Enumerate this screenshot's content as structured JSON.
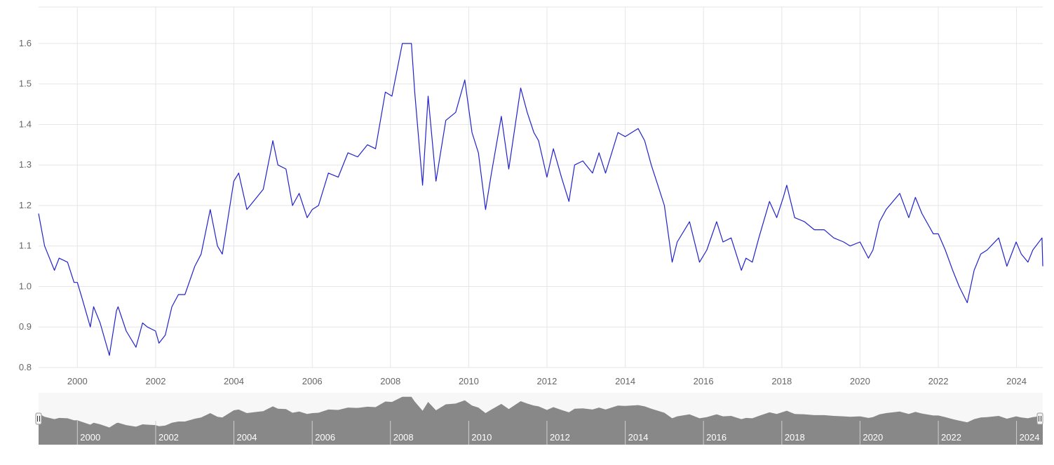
{
  "chart_data": {
    "type": "line",
    "title": "",
    "xlabel": "",
    "ylabel": "",
    "x_range": [
      "1999-01-04",
      "2024-09-02"
    ],
    "ylim": [
      0.8,
      1.69
    ],
    "y_ticks": [
      "0.8",
      "0.9",
      "1.0",
      "1.1",
      "1.2",
      "1.3",
      "1.4",
      "1.5",
      "1.6"
    ],
    "x_ticks": [
      "2000",
      "2002",
      "2004",
      "2006",
      "2008",
      "2010",
      "2012",
      "2014",
      "2016",
      "2018",
      "2020",
      "2022",
      "2024"
    ],
    "grid": true,
    "legend": "none",
    "navigator": {
      "ticks": [
        "2000",
        "2002",
        "2004",
        "2006",
        "2008",
        "2010",
        "2012",
        "2014",
        "2016",
        "2018",
        "2020",
        "2022",
        "2024"
      ],
      "fill_color": "#888888",
      "background": "#f7f7f7"
    },
    "series": [
      {
        "color": "#2222cc",
        "points": [
          [
            "1999-01-04",
            1.18
          ],
          [
            "1999-03-01",
            1.1
          ],
          [
            "1999-06-01",
            1.04
          ],
          [
            "1999-07-15",
            1.07
          ],
          [
            "1999-10-01",
            1.06
          ],
          [
            "1999-12-01",
            1.01
          ],
          [
            "2000-01-01",
            1.01
          ],
          [
            "2000-02-15",
            0.97
          ],
          [
            "2000-05-01",
            0.9
          ],
          [
            "2000-06-01",
            0.95
          ],
          [
            "2000-08-01",
            0.91
          ],
          [
            "2000-10-26",
            0.83
          ],
          [
            "2000-12-31",
            0.94
          ],
          [
            "2001-01-15",
            0.95
          ],
          [
            "2001-04-01",
            0.89
          ],
          [
            "2001-07-01",
            0.85
          ],
          [
            "2001-09-01",
            0.91
          ],
          [
            "2001-10-15",
            0.9
          ],
          [
            "2001-12-31",
            0.89
          ],
          [
            "2002-02-01",
            0.86
          ],
          [
            "2002-04-01",
            0.88
          ],
          [
            "2002-06-01",
            0.95
          ],
          [
            "2002-08-01",
            0.98
          ],
          [
            "2002-10-01",
            0.98
          ],
          [
            "2003-01-01",
            1.05
          ],
          [
            "2003-03-01",
            1.08
          ],
          [
            "2003-05-25",
            1.19
          ],
          [
            "2003-08-01",
            1.1
          ],
          [
            "2003-09-15",
            1.08
          ],
          [
            "2003-12-31",
            1.26
          ],
          [
            "2004-02-15",
            1.28
          ],
          [
            "2004-05-01",
            1.19
          ],
          [
            "2004-08-01",
            1.22
          ],
          [
            "2004-10-01",
            1.24
          ],
          [
            "2004-12-30",
            1.36
          ],
          [
            "2005-02-15",
            1.3
          ],
          [
            "2005-05-01",
            1.29
          ],
          [
            "2005-07-01",
            1.2
          ],
          [
            "2005-09-01",
            1.23
          ],
          [
            "2005-11-15",
            1.17
          ],
          [
            "2006-01-01",
            1.19
          ],
          [
            "2006-03-01",
            1.2
          ],
          [
            "2006-06-01",
            1.28
          ],
          [
            "2006-09-01",
            1.27
          ],
          [
            "2006-12-01",
            1.33
          ],
          [
            "2007-03-01",
            1.32
          ],
          [
            "2007-06-01",
            1.35
          ],
          [
            "2007-08-15",
            1.34
          ],
          [
            "2007-11-15",
            1.48
          ],
          [
            "2008-01-15",
            1.47
          ],
          [
            "2008-04-21",
            1.6
          ],
          [
            "2008-07-15",
            1.6
          ],
          [
            "2008-08-15",
            1.48
          ],
          [
            "2008-10-27",
            1.25
          ],
          [
            "2008-12-18",
            1.47
          ],
          [
            "2009-03-01",
            1.26
          ],
          [
            "2009-06-01",
            1.41
          ],
          [
            "2009-09-01",
            1.43
          ],
          [
            "2009-11-25",
            1.51
          ],
          [
            "2010-02-01",
            1.38
          ],
          [
            "2010-04-01",
            1.33
          ],
          [
            "2010-06-07",
            1.19
          ],
          [
            "2010-08-01",
            1.28
          ],
          [
            "2010-11-01",
            1.42
          ],
          [
            "2011-01-10",
            1.29
          ],
          [
            "2011-05-01",
            1.49
          ],
          [
            "2011-07-01",
            1.43
          ],
          [
            "2011-09-01",
            1.38
          ],
          [
            "2011-10-15",
            1.36
          ],
          [
            "2012-01-01",
            1.27
          ],
          [
            "2012-03-01",
            1.34
          ],
          [
            "2012-05-15",
            1.27
          ],
          [
            "2012-07-24",
            1.21
          ],
          [
            "2012-09-15",
            1.3
          ],
          [
            "2012-12-01",
            1.31
          ],
          [
            "2013-03-01",
            1.28
          ],
          [
            "2013-05-01",
            1.33
          ],
          [
            "2013-07-01",
            1.28
          ],
          [
            "2013-10-25",
            1.38
          ],
          [
            "2014-01-01",
            1.37
          ],
          [
            "2014-05-01",
            1.39
          ],
          [
            "2014-07-01",
            1.36
          ],
          [
            "2014-09-01",
            1.3
          ],
          [
            "2014-11-01",
            1.25
          ],
          [
            "2015-01-01",
            1.2
          ],
          [
            "2015-03-15",
            1.06
          ],
          [
            "2015-05-01",
            1.11
          ],
          [
            "2015-08-24",
            1.16
          ],
          [
            "2015-11-25",
            1.06
          ],
          [
            "2016-02-01",
            1.09
          ],
          [
            "2016-05-03",
            1.16
          ],
          [
            "2016-07-01",
            1.11
          ],
          [
            "2016-09-15",
            1.12
          ],
          [
            "2016-12-20",
            1.04
          ],
          [
            "2017-02-01",
            1.07
          ],
          [
            "2017-04-01",
            1.06
          ],
          [
            "2017-06-01",
            1.12
          ],
          [
            "2017-09-08",
            1.21
          ],
          [
            "2017-11-15",
            1.17
          ],
          [
            "2018-01-15",
            1.22
          ],
          [
            "2018-02-16",
            1.25
          ],
          [
            "2018-05-01",
            1.17
          ],
          [
            "2018-08-01",
            1.16
          ],
          [
            "2018-11-01",
            1.14
          ],
          [
            "2019-02-01",
            1.14
          ],
          [
            "2019-05-01",
            1.12
          ],
          [
            "2019-08-01",
            1.11
          ],
          [
            "2019-10-01",
            1.1
          ],
          [
            "2020-01-01",
            1.11
          ],
          [
            "2020-03-20",
            1.07
          ],
          [
            "2020-05-01",
            1.09
          ],
          [
            "2020-07-01",
            1.16
          ],
          [
            "2020-09-01",
            1.19
          ],
          [
            "2021-01-06",
            1.23
          ],
          [
            "2021-03-31",
            1.17
          ],
          [
            "2021-06-01",
            1.22
          ],
          [
            "2021-08-01",
            1.18
          ],
          [
            "2021-11-15",
            1.13
          ],
          [
            "2022-01-01",
            1.13
          ],
          [
            "2022-03-07",
            1.09
          ],
          [
            "2022-05-15",
            1.04
          ],
          [
            "2022-07-15",
            1.0
          ],
          [
            "2022-09-28",
            0.96
          ],
          [
            "2022-12-01",
            1.04
          ],
          [
            "2023-02-01",
            1.08
          ],
          [
            "2023-04-01",
            1.09
          ],
          [
            "2023-07-18",
            1.12
          ],
          [
            "2023-10-03",
            1.05
          ],
          [
            "2023-12-28",
            1.11
          ],
          [
            "2024-02-15",
            1.08
          ],
          [
            "2024-04-16",
            1.06
          ],
          [
            "2024-06-01",
            1.09
          ],
          [
            "2024-08-26",
            1.12
          ],
          [
            "2024-09-02",
            1.05
          ]
        ]
      }
    ]
  }
}
